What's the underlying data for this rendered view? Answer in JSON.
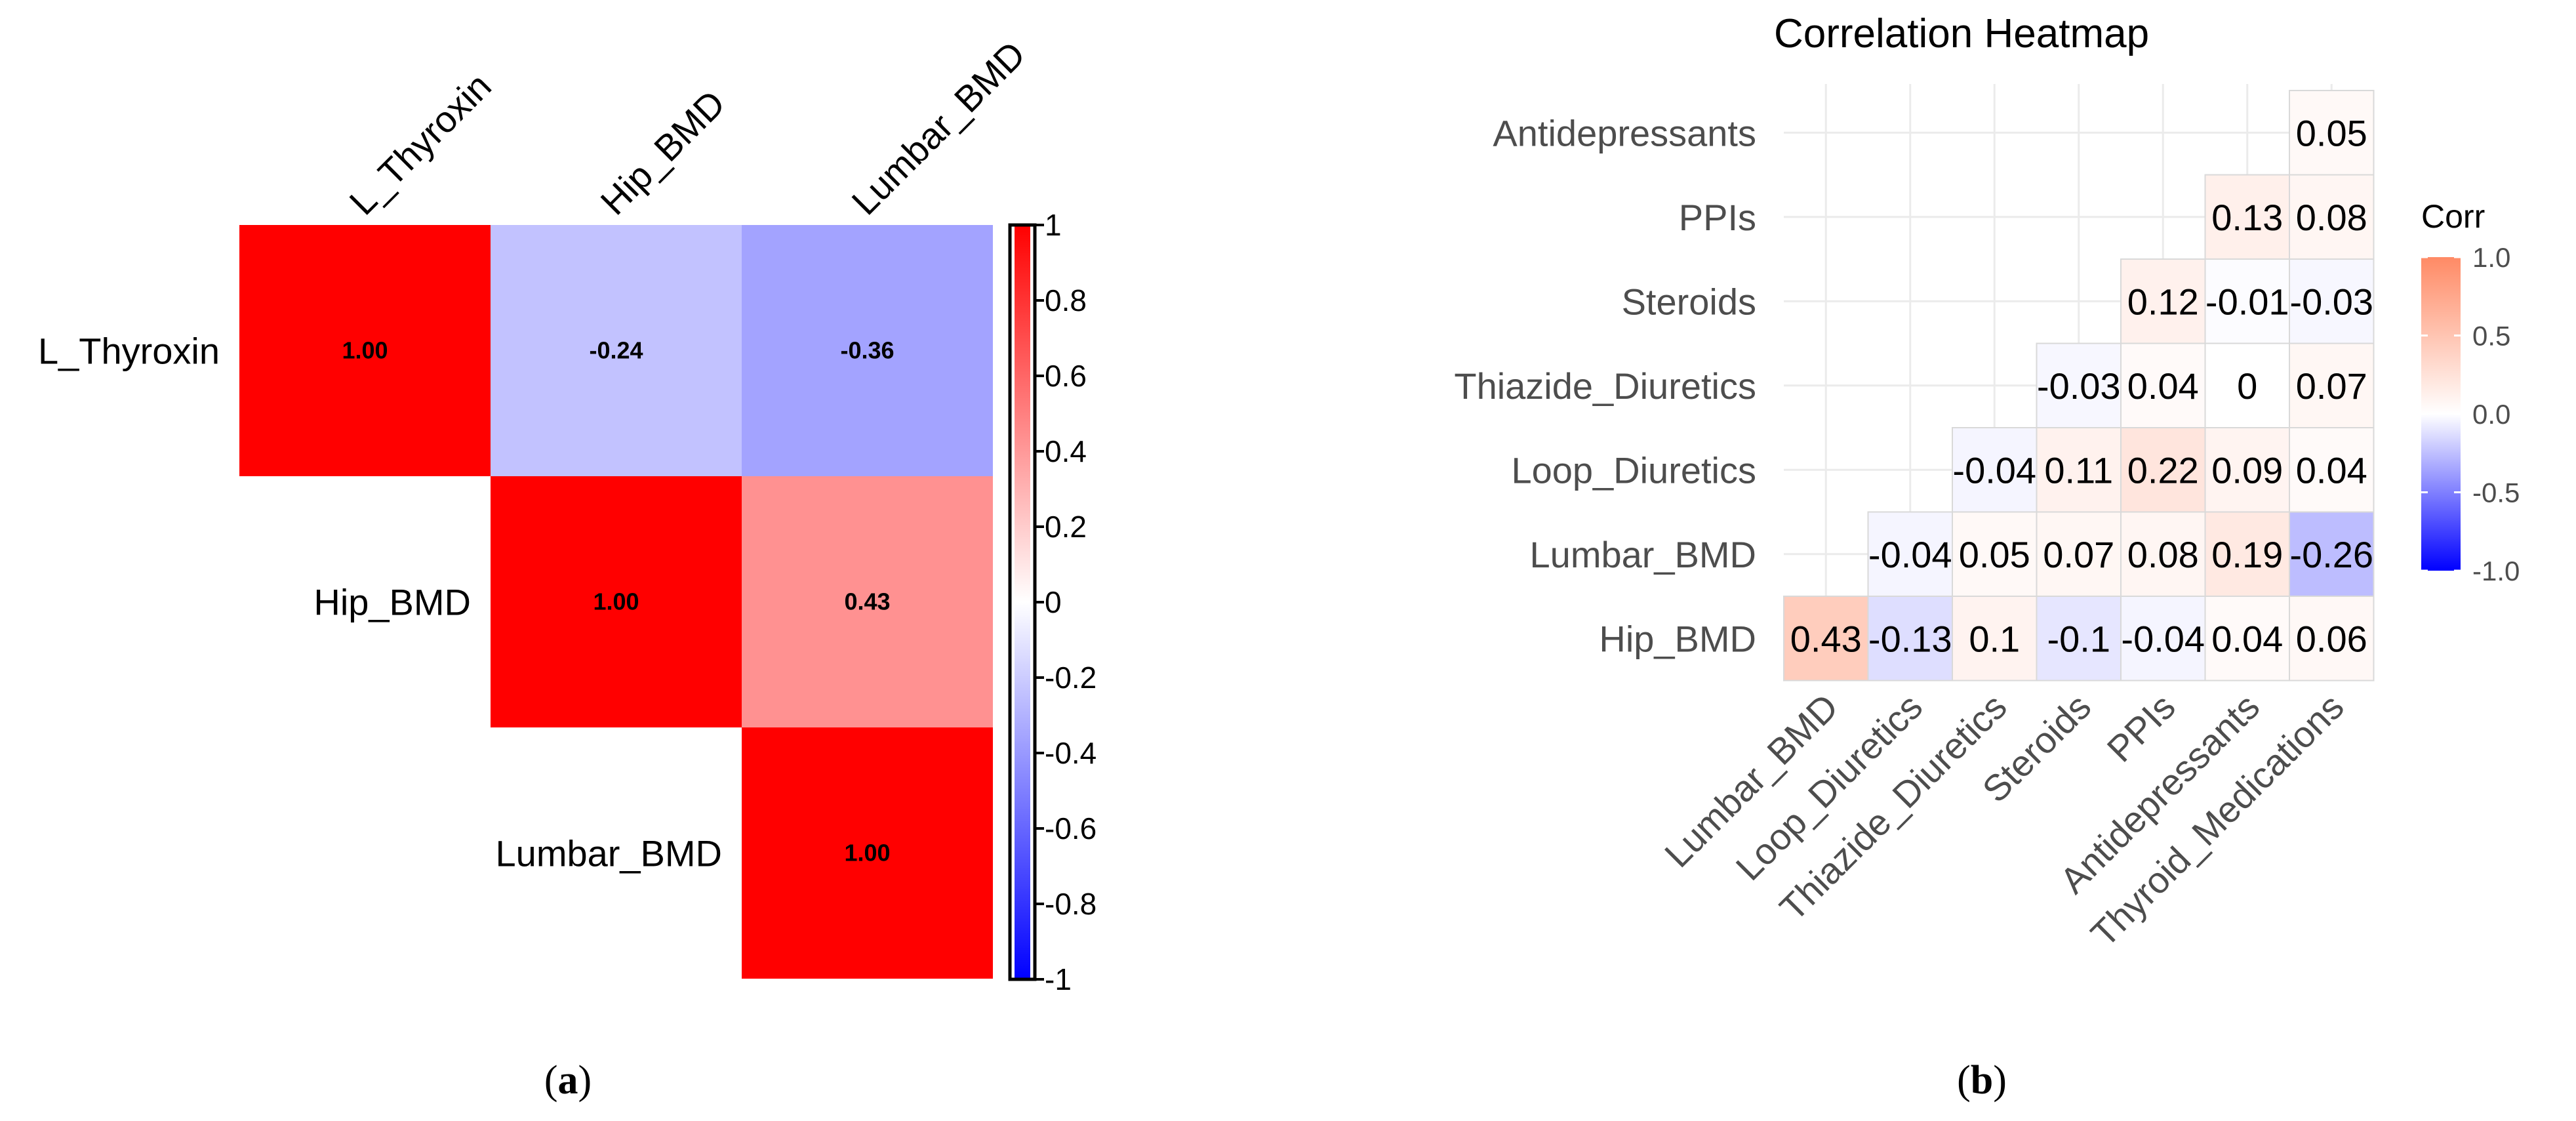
{
  "chart_data": [
    {
      "panel": "(a)",
      "type": "heatmap",
      "title": "",
      "variables": [
        "L_Thyroxin",
        "Hip_BMD",
        "Lumbar_BMD"
      ],
      "matrix": [
        [
          1.0,
          -0.24,
          -0.36
        ],
        [
          null,
          1.0,
          0.43
        ],
        [
          null,
          null,
          1.0
        ]
      ],
      "cell_labels": [
        [
          "1.00",
          "-0.24",
          "-0.36"
        ],
        [
          null,
          "1.00",
          "0.43"
        ],
        [
          null,
          null,
          "1.00"
        ]
      ],
      "colorbar": {
        "range": [
          -1,
          1
        ],
        "ticks": [
          "1",
          "0.8",
          "0.6",
          "0.4",
          "0.2",
          "0",
          "-0.2",
          "-0.4",
          "-0.6",
          "-0.8",
          "-1"
        ],
        "tick_values": [
          1,
          0.8,
          0.6,
          0.4,
          0.2,
          0,
          -0.2,
          -0.4,
          -0.6,
          -0.8,
          -1
        ],
        "low_color": "#0000ff",
        "mid_color": "#ffffff",
        "high_color": "#ff0000"
      }
    },
    {
      "panel": "(b)",
      "type": "heatmap",
      "title": "Correlation Heatmap",
      "x_labels": [
        "Lumbar_BMD",
        "Loop_Diuretics",
        "Thiazide_Diuretics",
        "Steroids",
        "PPIs",
        "Antidepressants",
        "Thyroid_Medications"
      ],
      "y_labels_top_to_bottom": [
        "Antidepressants",
        "PPIs",
        "Steroids",
        "Thiazide_Diuretics",
        "Loop_Diuretics",
        "Lumbar_BMD",
        "Hip_BMD"
      ],
      "cells": [
        {
          "x": "Thyroid_Medications",
          "y": "Antidepressants",
          "value": 0.05,
          "label": "0.05"
        },
        {
          "x": "Antidepressants",
          "y": "PPIs",
          "value": 0.13,
          "label": "0.13"
        },
        {
          "x": "Thyroid_Medications",
          "y": "PPIs",
          "value": 0.08,
          "label": "0.08"
        },
        {
          "x": "PPIs",
          "y": "Steroids",
          "value": 0.12,
          "label": "0.12"
        },
        {
          "x": "Antidepressants",
          "y": "Steroids",
          "value": -0.01,
          "label": "-0.01"
        },
        {
          "x": "Thyroid_Medications",
          "y": "Steroids",
          "value": -0.03,
          "label": "-0.03"
        },
        {
          "x": "Steroids",
          "y": "Thiazide_Diuretics",
          "value": -0.03,
          "label": "-0.03"
        },
        {
          "x": "PPIs",
          "y": "Thiazide_Diuretics",
          "value": 0.04,
          "label": "0.04"
        },
        {
          "x": "Antidepressants",
          "y": "Thiazide_Diuretics",
          "value": 0,
          "label": "0"
        },
        {
          "x": "Thyroid_Medications",
          "y": "Thiazide_Diuretics",
          "value": 0.07,
          "label": "0.07"
        },
        {
          "x": "Thiazide_Diuretics",
          "y": "Loop_Diuretics",
          "value": -0.04,
          "label": "-0.04"
        },
        {
          "x": "Steroids",
          "y": "Loop_Diuretics",
          "value": 0.11,
          "label": "0.11"
        },
        {
          "x": "PPIs",
          "y": "Loop_Diuretics",
          "value": 0.22,
          "label": "0.22"
        },
        {
          "x": "Antidepressants",
          "y": "Loop_Diuretics",
          "value": 0.09,
          "label": "0.09"
        },
        {
          "x": "Thyroid_Medications",
          "y": "Loop_Diuretics",
          "value": 0.04,
          "label": "0.04"
        },
        {
          "x": "Loop_Diuretics",
          "y": "Lumbar_BMD",
          "value": -0.04,
          "label": "-0.04"
        },
        {
          "x": "Thiazide_Diuretics",
          "y": "Lumbar_BMD",
          "value": 0.05,
          "label": "0.05"
        },
        {
          "x": "Steroids",
          "y": "Lumbar_BMD",
          "value": 0.07,
          "label": "0.07"
        },
        {
          "x": "PPIs",
          "y": "Lumbar_BMD",
          "value": 0.08,
          "label": "0.08"
        },
        {
          "x": "Antidepressants",
          "y": "Lumbar_BMD",
          "value": 0.19,
          "label": "0.19"
        },
        {
          "x": "Thyroid_Medications",
          "y": "Lumbar_BMD",
          "value": -0.26,
          "label": "-0.26"
        },
        {
          "x": "Lumbar_BMD",
          "y": "Hip_BMD",
          "value": 0.43,
          "label": "0.43"
        },
        {
          "x": "Loop_Diuretics",
          "y": "Hip_BMD",
          "value": -0.13,
          "label": "-0.13"
        },
        {
          "x": "Thiazide_Diuretics",
          "y": "Hip_BMD",
          "value": 0.1,
          "label": "0.1"
        },
        {
          "x": "Steroids",
          "y": "Hip_BMD",
          "value": -0.1,
          "label": "-0.1"
        },
        {
          "x": "PPIs",
          "y": "Hip_BMD",
          "value": -0.04,
          "label": "-0.04"
        },
        {
          "x": "Antidepressants",
          "y": "Hip_BMD",
          "value": 0.04,
          "label": "0.04"
        },
        {
          "x": "Thyroid_Medications",
          "y": "Hip_BMD",
          "value": 0.06,
          "label": "0.06"
        }
      ],
      "legend": {
        "title": "Corr",
        "range": [
          -1,
          1
        ],
        "ticks": [
          "1.0",
          "0.5",
          "0.0",
          "-0.5",
          "-1.0"
        ],
        "tick_values": [
          1,
          0.5,
          0,
          -0.5,
          -1
        ],
        "low_color": "#0000ff",
        "mid_color": "#ffffff",
        "high_color": "#ff8a65",
        "placement": "right"
      }
    }
  ],
  "captions": {
    "a_open": "(",
    "a_letter": "a",
    "a_close": ")",
    "b_open": "(",
    "b_letter": "b",
    "b_close": ")"
  }
}
